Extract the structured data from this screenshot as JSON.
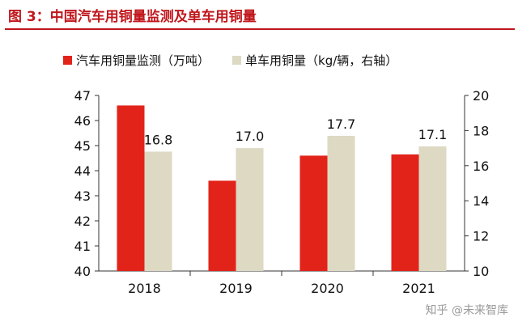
{
  "figure_title": "图 3：中国汽车用铜量监测及单车用铜量",
  "colors": {
    "title": "#c0161c",
    "series_primary": "#e2231a",
    "series_secondary": "#ddd9c3",
    "axis": "#333333",
    "text": "#111111"
  },
  "watermark": "知乎 @未来智库",
  "chart_data": {
    "type": "bar",
    "title": "",
    "categories": [
      "2018",
      "2019",
      "2020",
      "2021"
    ],
    "series": [
      {
        "name": "汽车用铜量监测（万吨）",
        "axis": "left",
        "color": "#e2231a",
        "values": [
          46.6,
          43.6,
          44.6,
          44.65
        ],
        "show_labels": false
      },
      {
        "name": "单车用铜量（kg/辆，右轴）",
        "axis": "right",
        "color": "#ddd9c3",
        "values": [
          16.8,
          17.0,
          17.7,
          17.1
        ],
        "show_labels": true,
        "labels": [
          "16.8",
          "17.0",
          "17.7",
          "17.1"
        ]
      }
    ],
    "y_left": {
      "min": 40,
      "max": 47,
      "ticks": [
        "40",
        "41",
        "42",
        "43",
        "44",
        "45",
        "46",
        "47"
      ]
    },
    "y_right": {
      "min": 10,
      "max": 20,
      "ticks": [
        "10",
        "12",
        "14",
        "16",
        "18",
        "20"
      ]
    },
    "grid": false,
    "legend_position": "top"
  }
}
